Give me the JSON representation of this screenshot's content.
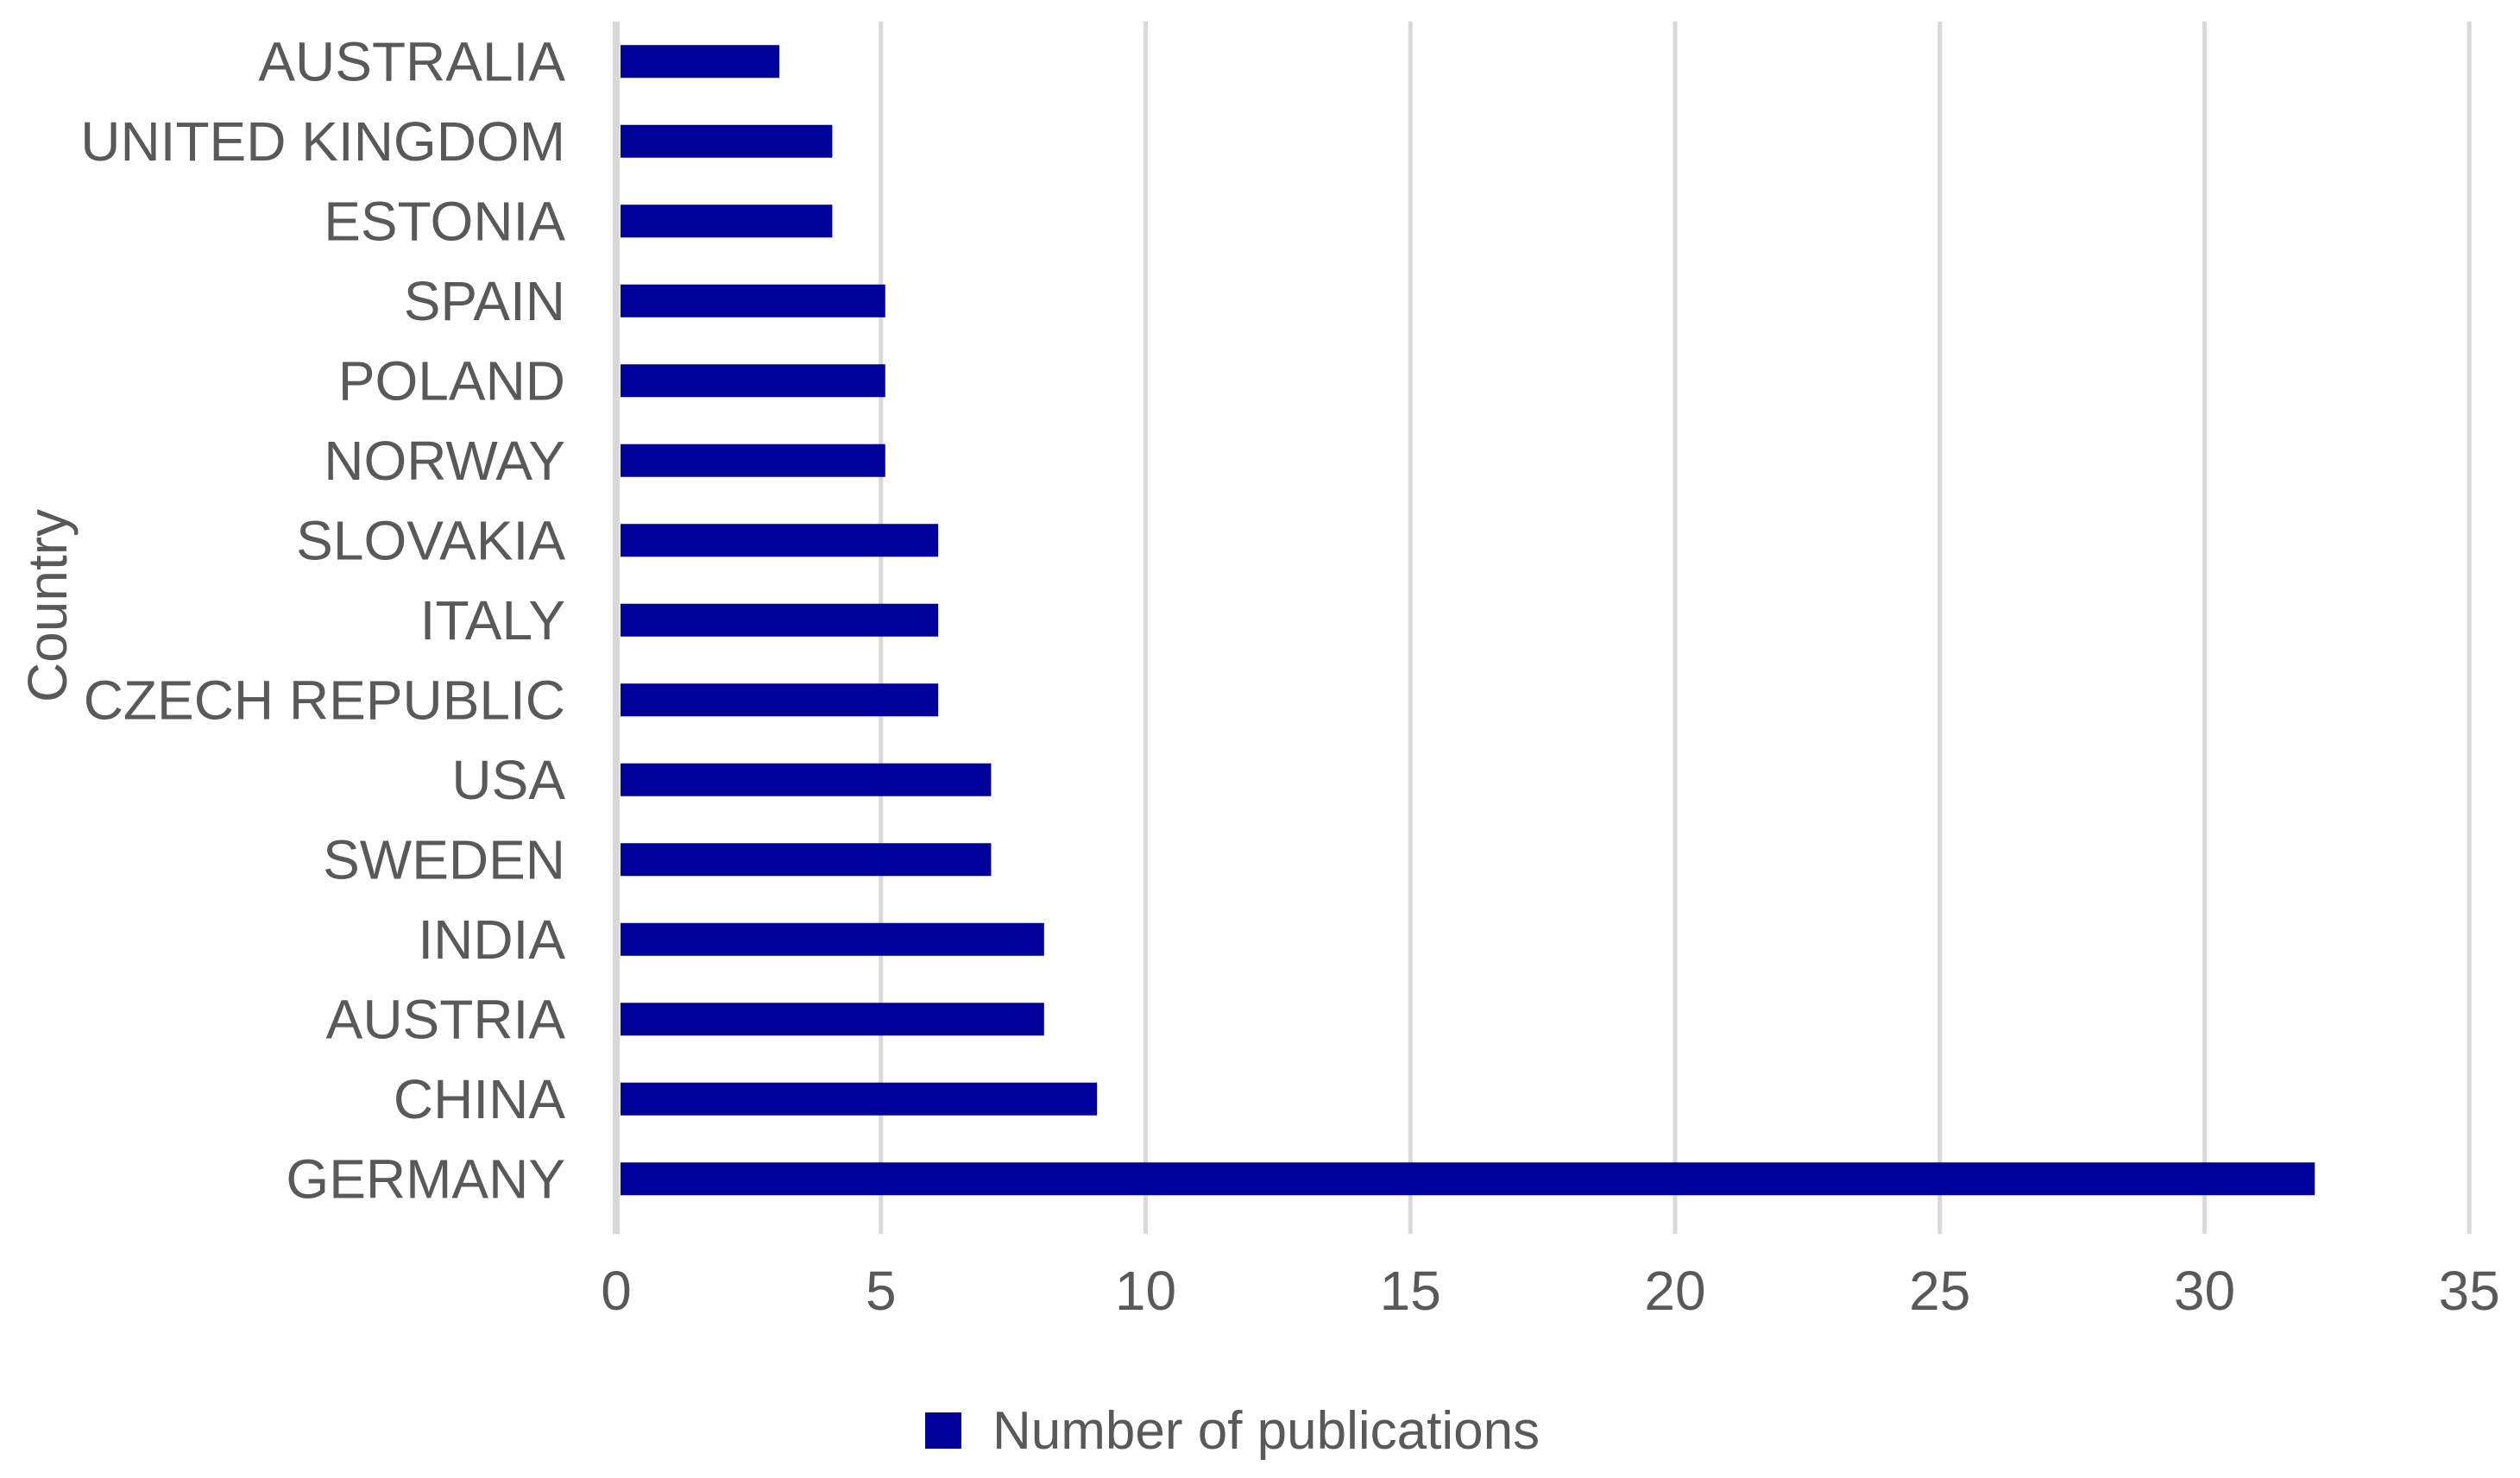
{
  "chart_data": {
    "type": "bar",
    "orientation": "horizontal",
    "title": "",
    "xlabel": "",
    "ylabel": "Country",
    "categories": [
      "AUSTRALIA",
      "UNITED KINGDOM",
      "ESTONIA",
      "SPAIN",
      "POLAND",
      "NORWAY",
      "SLOVAKIA",
      "ITALY",
      "CZECH REPUBLIC",
      "USA",
      "SWEDEN",
      "INDIA",
      "AUSTRIA",
      "CHINA",
      "GERMANY"
    ],
    "series": [
      {
        "name": "Number of publications",
        "values": [
          3,
          4,
          4,
          5,
          5,
          5,
          6,
          6,
          6,
          7,
          7,
          8,
          8,
          9,
          32
        ]
      }
    ],
    "xlim": [
      0,
      35
    ],
    "xticks": [
      0,
      5,
      10,
      15,
      20,
      25,
      30,
      35
    ],
    "grid": "vertical-major",
    "legend_position": "bottom-center"
  },
  "legend": {
    "label": "Number of publications"
  },
  "axis": {
    "y_title": "Country"
  },
  "colors": {
    "bar": "#00009B",
    "gridline": "#D9D9D9",
    "axis_line": "#D8D8D8",
    "text": "#595959",
    "background": "#FFFFFF"
  }
}
